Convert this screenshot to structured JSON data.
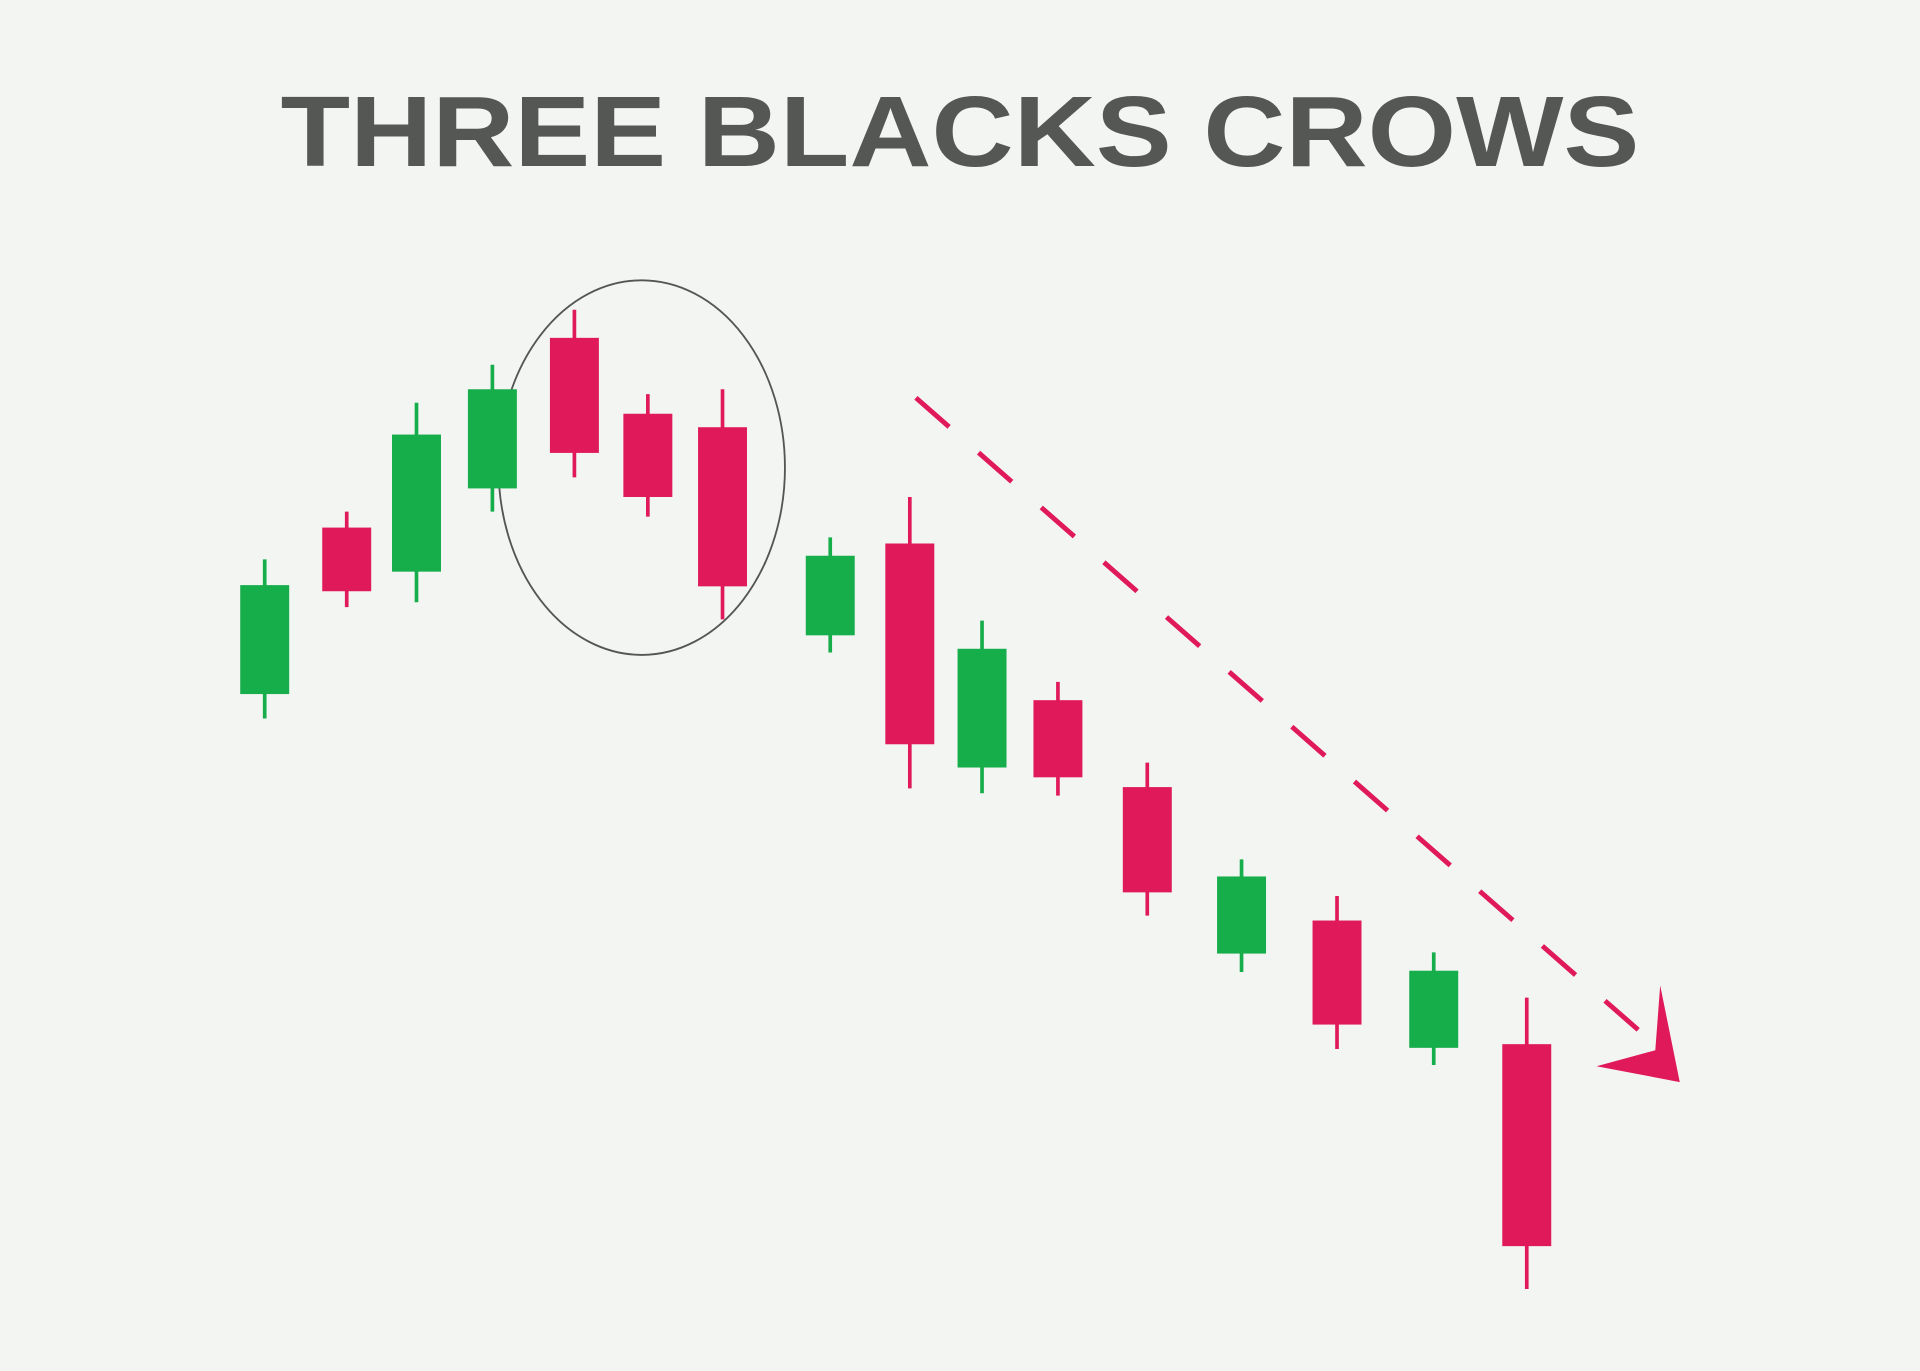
{
  "chart_data": {
    "type": "candlestick",
    "title": "THREE BLACKS CROWS",
    "open": [
      55.3,
      68.9,
      65.3,
      72.1,
      84.4,
      78.2,
      77.1,
      60.1,
      67.6,
      49.3,
      54.8,
      47.7,
      34.1,
      36.8,
      26.4,
      26.7
    ],
    "high": [
      66.3,
      70.2,
      79.1,
      82.2,
      86.7,
      79.8,
      80.2,
      68.1,
      71.4,
      61.3,
      56.3,
      49.7,
      41.8,
      38.8,
      34.2,
      30.5
    ],
    "low": [
      53.3,
      62.4,
      62.8,
      70.2,
      73.0,
      69.8,
      61.4,
      58.7,
      47.6,
      47.2,
      47.0,
      37.2,
      32.6,
      26.3,
      25.0,
      6.7
    ],
    "close": [
      64.2,
      63.7,
      76.5,
      80.2,
      75.0,
      71.4,
      64.1,
      66.6,
      51.2,
      59.0,
      48.5,
      39.1,
      40.4,
      28.3,
      32.7,
      10.2
    ],
    "up_color": "#16ad4b",
    "down_color": "#e0195a"
  }
}
